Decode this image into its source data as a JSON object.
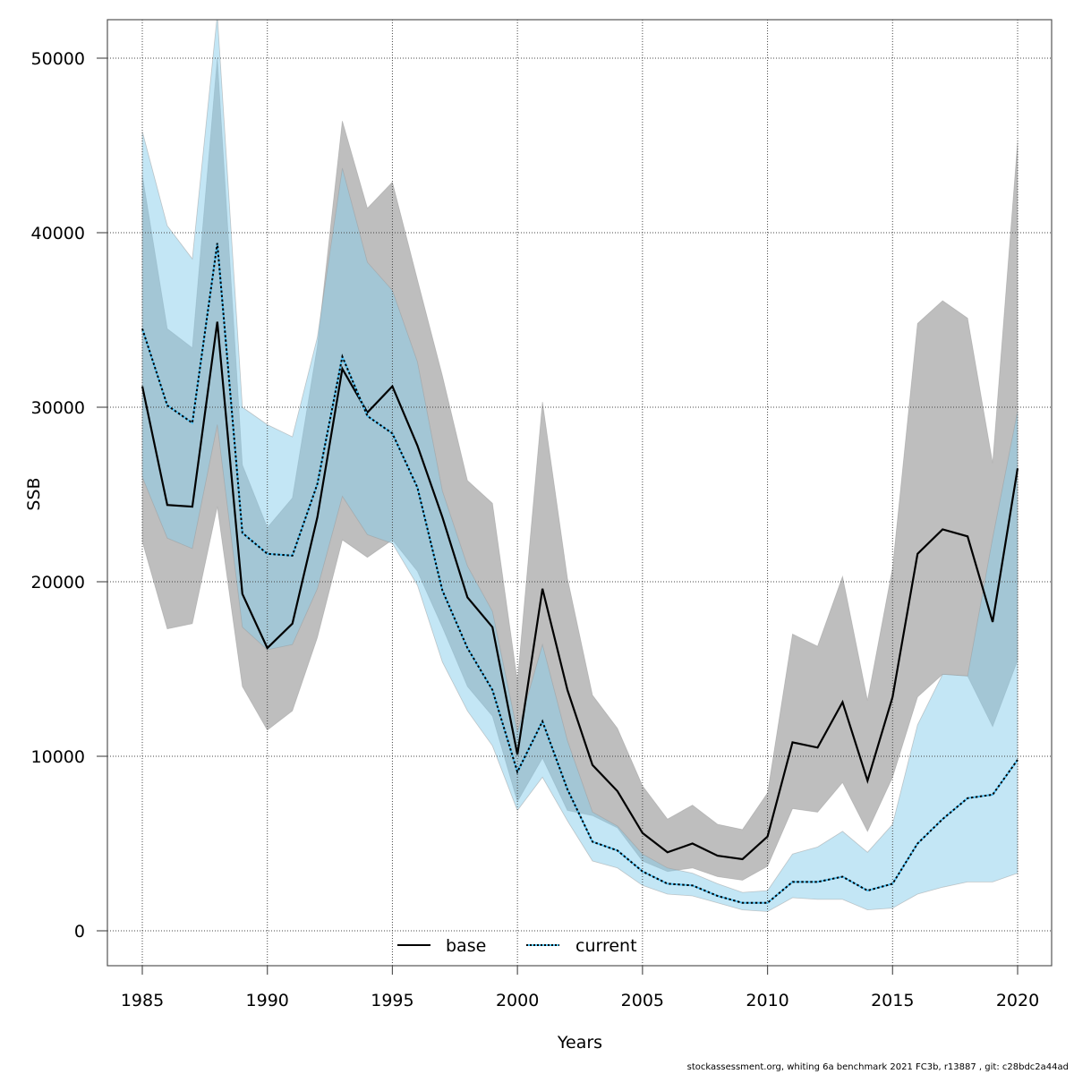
{
  "chart_data": {
    "type": "line",
    "title": "",
    "xlabel": "Years",
    "ylabel": "SSB",
    "xlim": [
      1983.6,
      2021.1
    ],
    "ylim": [
      -2000,
      52200
    ],
    "x_ticks": [
      1985,
      1990,
      1995,
      2000,
      2005,
      2010,
      2015,
      2020
    ],
    "y_ticks": [
      0,
      10000,
      20000,
      30000,
      40000,
      50000
    ],
    "grid": true,
    "legend_position": "bottom-center",
    "x": [
      1985,
      1986,
      1987,
      1988,
      1989,
      1990,
      1991,
      1992,
      1993,
      1994,
      1995,
      1996,
      1997,
      1998,
      1999,
      2000,
      2001,
      2002,
      2003,
      2004,
      2005,
      2006,
      2007,
      2008,
      2009,
      2010,
      2011,
      2012,
      2013,
      2014,
      2015,
      2016,
      2017,
      2018,
      2019,
      2020
    ],
    "series": [
      {
        "name": "base",
        "color": "#000000",
        "band_color": "#bebebe",
        "line_style": "solid",
        "values": [
          31200,
          24400,
          24300,
          34900,
          19300,
          16200,
          17600,
          23700,
          32200,
          29700,
          31200,
          27800,
          23700,
          19100,
          17400,
          10100,
          19600,
          13800,
          9500,
          8000,
          5600,
          4500,
          5000,
          4300,
          4100,
          5400,
          10800,
          10500,
          13100,
          8600,
          13400,
          21600,
          23000,
          22600,
          17700,
          26500
        ],
        "upper": [
          43300,
          34500,
          33400,
          50000,
          26700,
          23100,
          24800,
          33500,
          46400,
          41400,
          42900,
          37300,
          31800,
          25800,
          24500,
          14300,
          30300,
          20200,
          13500,
          11600,
          8300,
          6400,
          7200,
          6100,
          5800,
          7900,
          17000,
          16300,
          20300,
          13200,
          20800,
          34800,
          36100,
          35100,
          26800,
          45200
        ],
        "lower": [
          22300,
          17300,
          17600,
          24300,
          14000,
          11500,
          12600,
          16800,
          22400,
          21400,
          22400,
          20600,
          17400,
          14000,
          12300,
          7400,
          9900,
          6900,
          6600,
          5900,
          4000,
          3400,
          3600,
          3100,
          2900,
          3700,
          7000,
          6800,
          8500,
          5700,
          8800,
          13400,
          14700,
          14600,
          11700,
          15500
        ]
      },
      {
        "name": "current",
        "color": "#000000",
        "dash_color": "#4fc3f7",
        "band_color": "#87ceeb",
        "line_style": "dotted",
        "values": [
          34500,
          30100,
          29100,
          39400,
          22800,
          21600,
          21500,
          25600,
          32900,
          29500,
          28500,
          25400,
          19500,
          16200,
          13800,
          9100,
          12000,
          8100,
          5100,
          4600,
          3400,
          2700,
          2600,
          2000,
          1600,
          1600,
          2800,
          2800,
          3100,
          2300,
          2700,
          5000,
          6400,
          7600,
          7800,
          9800
        ],
        "upper": [
          45800,
          40400,
          38500,
          52500,
          30000,
          29000,
          28300,
          34000,
          43700,
          38300,
          36700,
          32600,
          25200,
          20900,
          18300,
          11400,
          16400,
          10900,
          6800,
          6000,
          4400,
          3600,
          3300,
          2700,
          2200,
          2300,
          4400,
          4800,
          5700,
          4500,
          6100,
          11800,
          14700,
          14600,
          22500,
          29800
        ],
        "lower": [
          26000,
          22500,
          21900,
          29000,
          17400,
          16100,
          16400,
          19600,
          24900,
          22700,
          22200,
          19800,
          15400,
          12600,
          10600,
          6900,
          8800,
          6300,
          4000,
          3600,
          2600,
          2100,
          2000,
          1600,
          1200,
          1100,
          1900,
          1800,
          1800,
          1200,
          1300,
          2100,
          2500,
          2800,
          2800,
          3300
        ]
      }
    ],
    "legend": [
      "base",
      "current"
    ],
    "footer_note": "stockassessment.org, whiting_6a_benchmark_2021_FC3b, r13887 , git: c28bdc2a44ad"
  }
}
